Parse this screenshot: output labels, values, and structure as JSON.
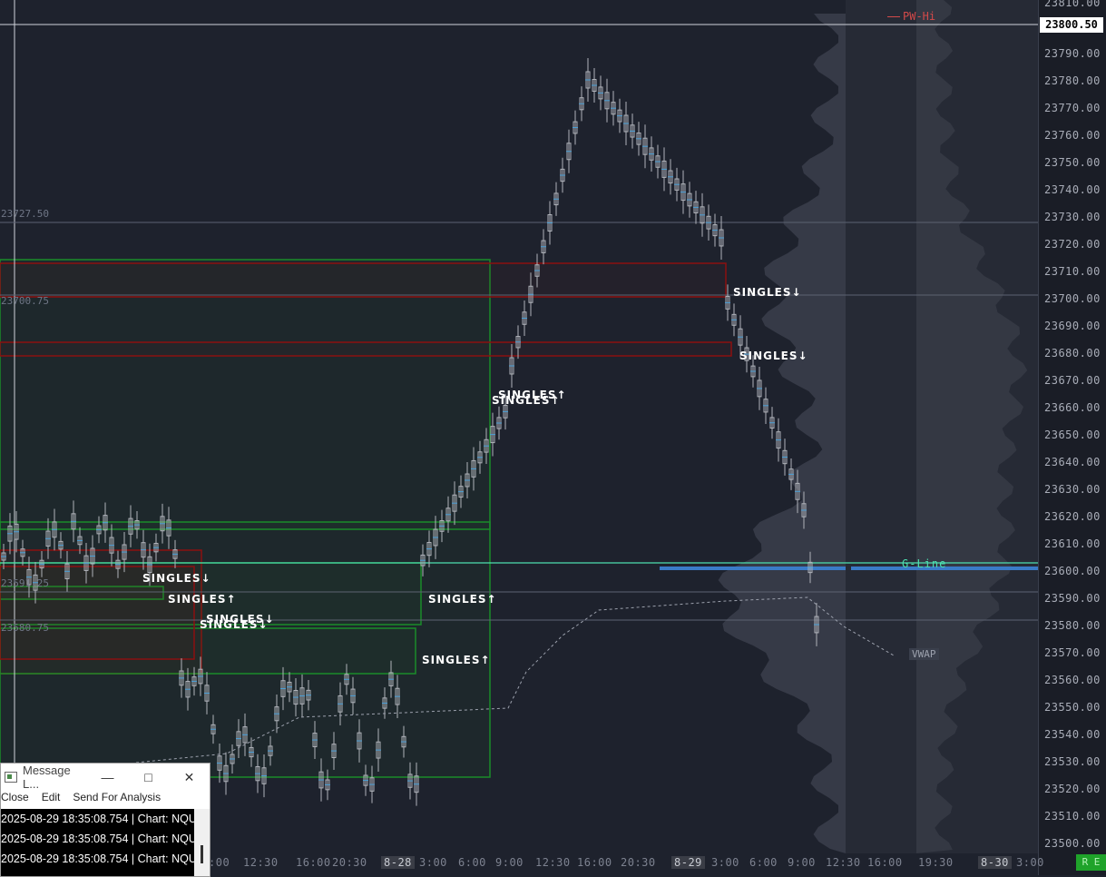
{
  "price_axis": {
    "ticks": [
      "23810.00",
      "23790.00",
      "23780.00",
      "23770.00",
      "23760.00",
      "23750.00",
      "23740.00",
      "23730.00",
      "23720.00",
      "23710.00",
      "23700.00",
      "23690.00",
      "23680.00",
      "23670.00",
      "23660.00",
      "23650.00",
      "23640.00",
      "23630.00",
      "23620.00",
      "23610.00",
      "23600.00",
      "23590.00",
      "23580.00",
      "23570.00",
      "23560.00",
      "23550.00",
      "23540.00",
      "23530.00",
      "23520.00",
      "23510.00",
      "23500.00"
    ],
    "current_price": "23800.50"
  },
  "time_axis": {
    "labels": [
      ":00",
      "12:30",
      "16:00",
      "20:30",
      "8-28",
      "3:00",
      "6:00",
      "9:00",
      "12:30",
      "16:00",
      "20:30",
      "8-29",
      "3:00",
      "6:00",
      "9:00",
      "12:30",
      "16:00",
      "19:30",
      "8-30",
      "3:00"
    ],
    "dates": [
      "8-28",
      "8-29",
      "8-30"
    ]
  },
  "levels": {
    "l1": "23727.50",
    "l2": "23700.75",
    "l3": "23591.25",
    "l4": "23580.75"
  },
  "annotations": {
    "pw_hi": "PW-Hi",
    "g_line": "G-Line",
    "vwap": "VWAP",
    "singles_down": "SINGLES↓",
    "singles_up": "SINGLES↑"
  },
  "colors": {
    "background": "#1e222d",
    "candle": "#b0b3ba",
    "green_box": "#1a8c2a",
    "red_box": "#8b1010",
    "g_line": "#4de0b0",
    "poc_line": "#3a7bc8",
    "profile": "#4a4f5c",
    "pw_hi": "#d24a4a"
  },
  "message_window": {
    "title": "Message L...",
    "menu": [
      "Close",
      "Edit",
      "Send For Analysis"
    ],
    "lines": [
      "2025-08-29  18:35:08.754 | Chart: NQU",
      "2025-08-29  18:35:08.754 | Chart: NQU",
      "2025-08-29  18:35:08.754 | Chart: NQU"
    ],
    "minimize_icon": "minimize-icon",
    "maximize_icon": "maximize-icon",
    "close_icon": "close-icon"
  },
  "status_badge": "R E"
}
